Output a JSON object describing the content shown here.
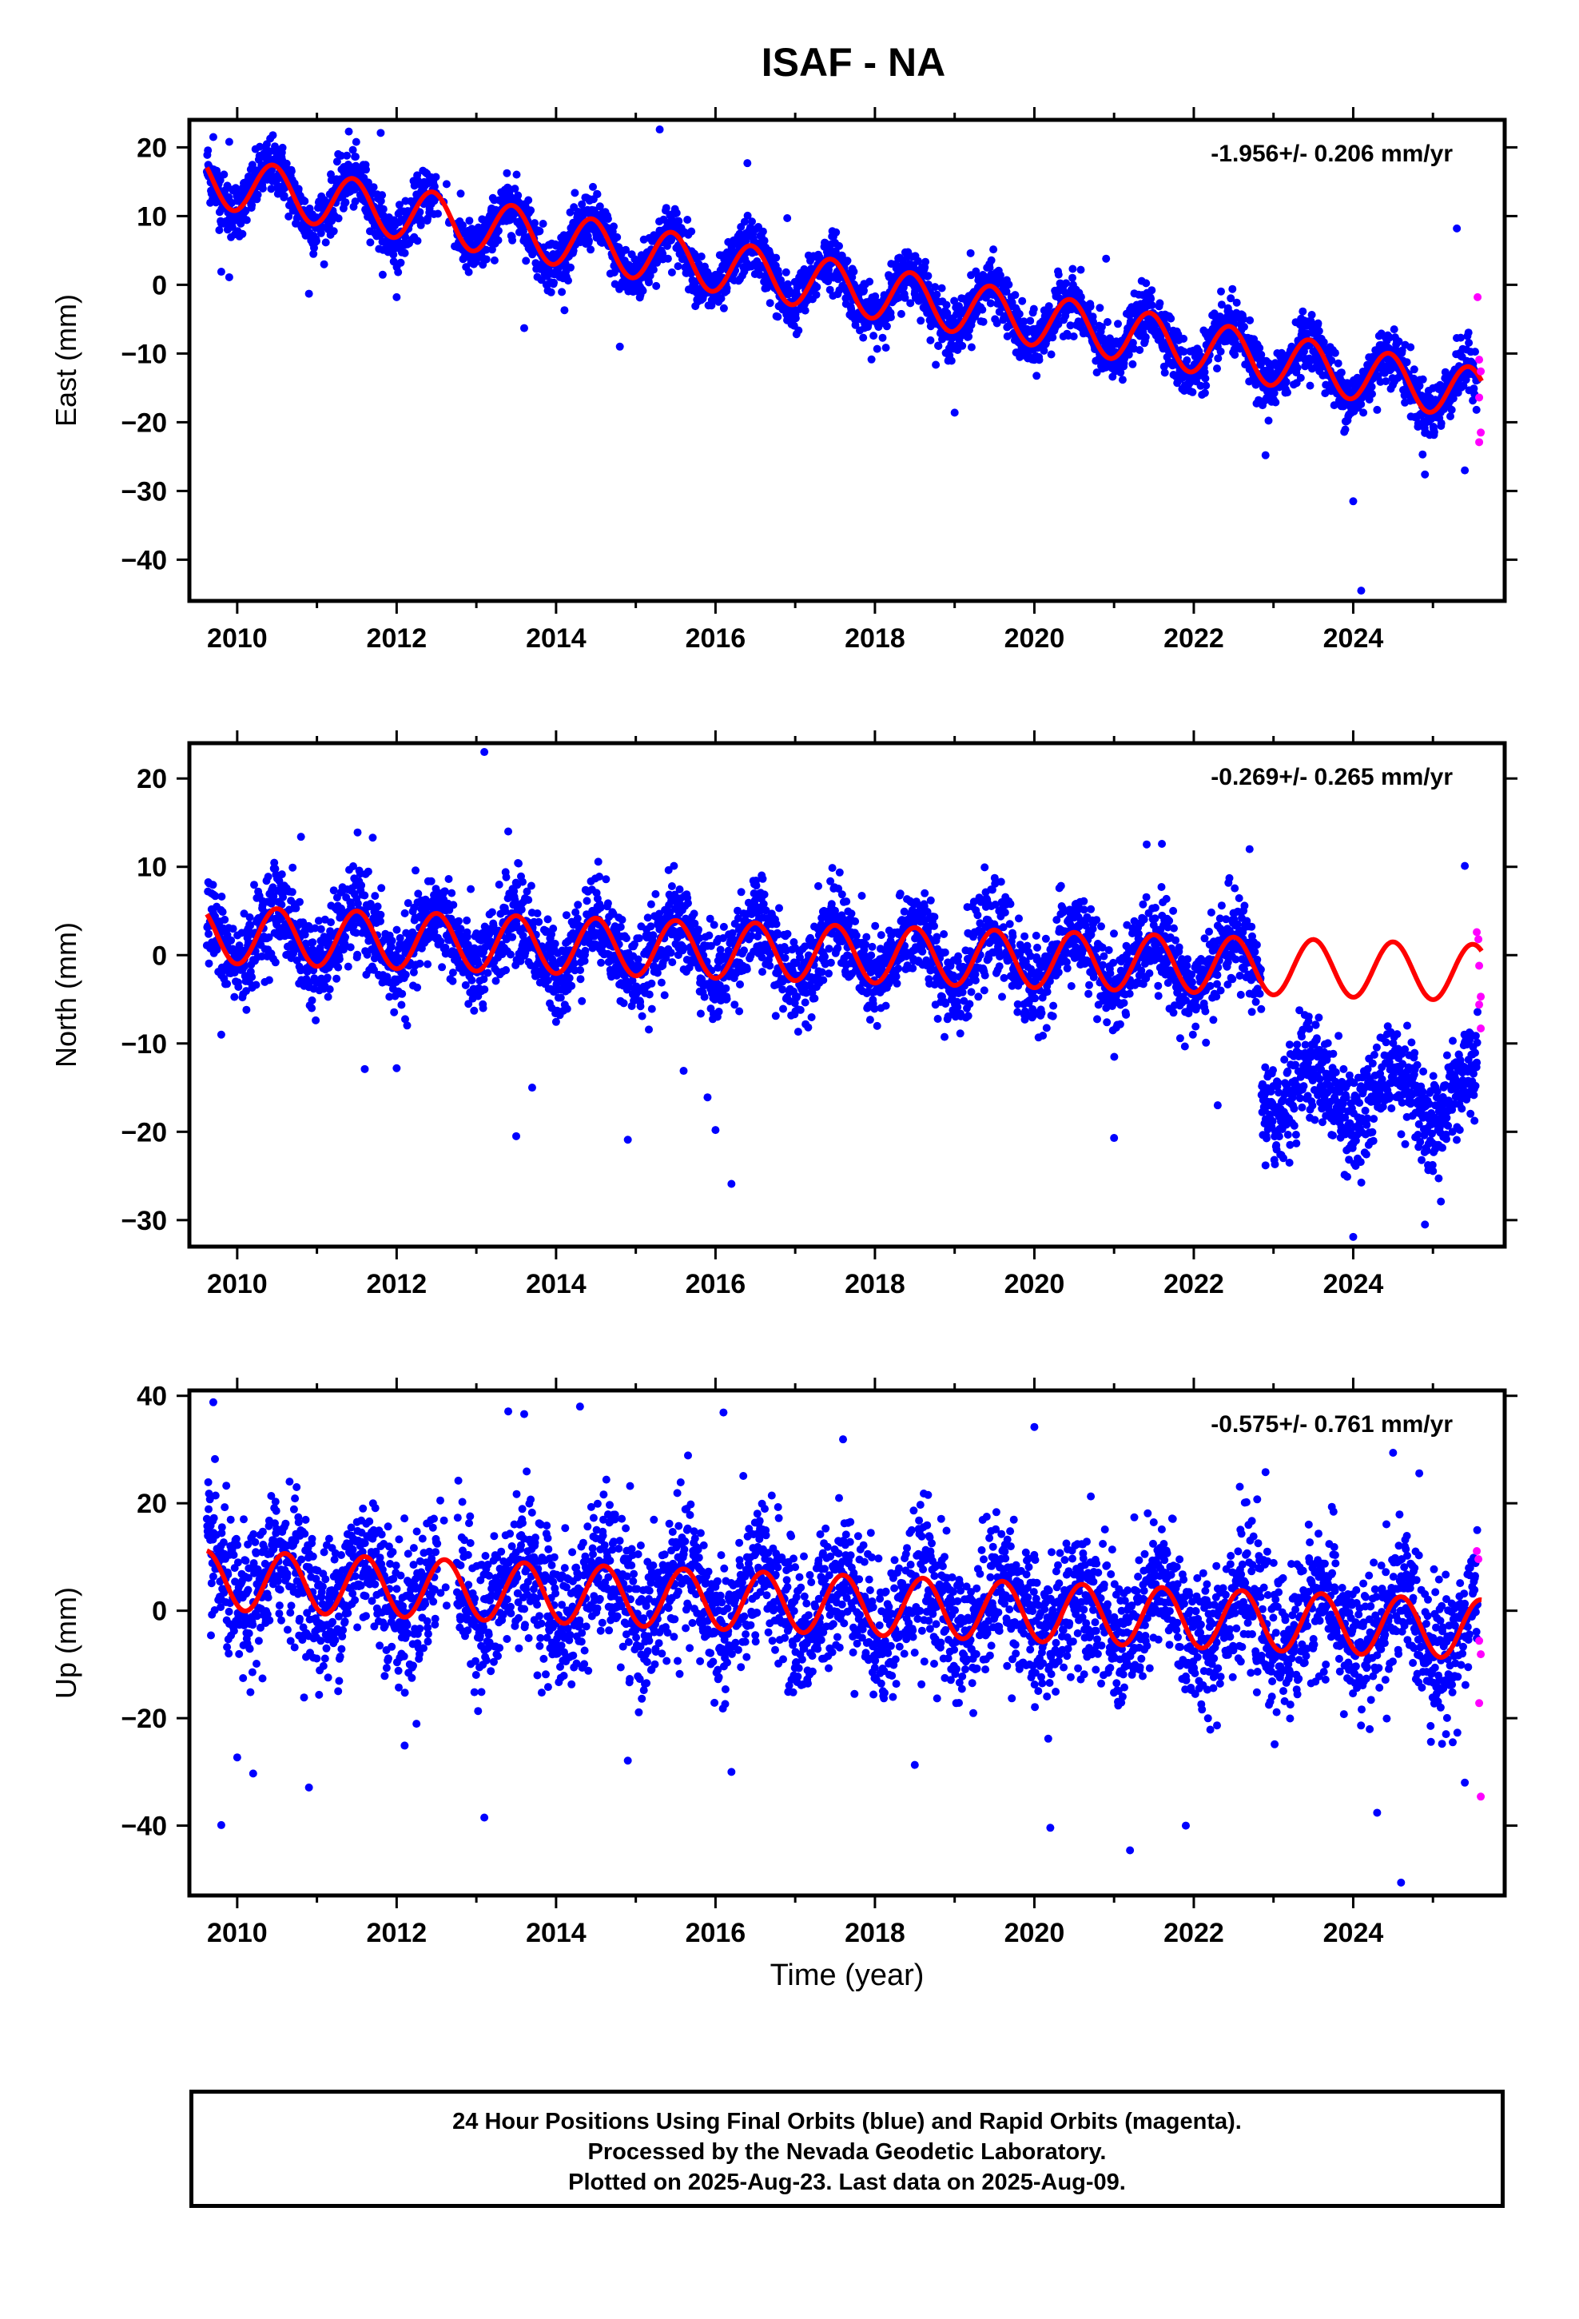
{
  "title": "ISAF - NA",
  "colors": {
    "final": "#0000ff",
    "rapid": "#ff00ff",
    "model": "#ff0000",
    "frame": "#000000"
  },
  "x_axis": {
    "xlim": [
      2009.4,
      2025.9
    ],
    "ticks": [
      2010,
      2012,
      2014,
      2016,
      2018,
      2020,
      2022,
      2024
    ],
    "minor_step": 1,
    "label": "Time (year)"
  },
  "chart_data": [
    {
      "type": "scatter",
      "component": "east",
      "ylabel": "East (mm)",
      "rate_label": "-1.956+/- 0.206 mm/yr",
      "ylim": [
        -46,
        24
      ],
      "yticks": [
        -40,
        -30,
        -20,
        -10,
        0,
        10,
        20
      ],
      "data_span": [
        2009.62,
        2025.61
      ],
      "model": {
        "offset": 14.5,
        "rate": -1.956,
        "amplitude": 3.8,
        "phase_peak": 0.45,
        "noise_sd": 2.0
      },
      "rapid_points": [
        {
          "x": 2025.56,
          "y": -1.8
        },
        {
          "x": 2025.58,
          "y": -10.9
        },
        {
          "x": 2025.6,
          "y": -12.6
        },
        {
          "x": 2025.58,
          "y": -16.4
        },
        {
          "x": 2025.6,
          "y": -21.5
        },
        {
          "x": 2025.58,
          "y": -22.9
        }
      ],
      "outliers": [
        {
          "x": 2009.7,
          "y": 21.5
        },
        {
          "x": 2009.9,
          "y": 20.8
        },
        {
          "x": 2009.8,
          "y": 1.9
        },
        {
          "x": 2009.9,
          "y": 1.1
        },
        {
          "x": 2010.9,
          "y": -1.3
        },
        {
          "x": 2011.4,
          "y": 22.3
        },
        {
          "x": 2011.8,
          "y": 22.1
        },
        {
          "x": 2012.0,
          "y": -1.8
        },
        {
          "x": 2013.6,
          "y": -6.3
        },
        {
          "x": 2014.8,
          "y": -9.0
        },
        {
          "x": 2015.3,
          "y": 22.6
        },
        {
          "x": 2016.4,
          "y": 17.7
        },
        {
          "x": 2016.9,
          "y": 9.7
        },
        {
          "x": 2019.0,
          "y": -18.6
        },
        {
          "x": 2019.2,
          "y": 4.6
        },
        {
          "x": 2020.9,
          "y": 3.8
        },
        {
          "x": 2022.9,
          "y": -24.8
        },
        {
          "x": 2024.0,
          "y": -31.5
        },
        {
          "x": 2024.1,
          "y": -44.5
        },
        {
          "x": 2024.3,
          "y": -18.2
        },
        {
          "x": 2024.9,
          "y": -27.6
        },
        {
          "x": 2025.3,
          "y": 8.2
        },
        {
          "x": 2025.4,
          "y": -27.0
        }
      ]
    },
    {
      "type": "scatter",
      "component": "north",
      "ylabel": "North (mm)",
      "rate_label": "-0.269+/- 0.265 mm/yr",
      "ylim": [
        -33,
        24
      ],
      "yticks": [
        -30,
        -20,
        -10,
        0,
        10,
        20
      ],
      "data_span": [
        2009.62,
        2025.61
      ],
      "offset_step": {
        "x": 2022.85,
        "dy": -14
      },
      "model": {
        "offset": 2.2,
        "rate": -0.269,
        "amplitude": 3.2,
        "phase_peak": 0.5,
        "noise_sd": 2.5
      },
      "rapid_points": [
        {
          "x": 2025.55,
          "y": 2.6
        },
        {
          "x": 2025.57,
          "y": 1.8
        },
        {
          "x": 2025.58,
          "y": -1.2
        },
        {
          "x": 2025.6,
          "y": -4.7
        },
        {
          "x": 2025.58,
          "y": -5.6
        },
        {
          "x": 2025.6,
          "y": -8.3
        }
      ],
      "outliers": [
        {
          "x": 2009.8,
          "y": -9.0
        },
        {
          "x": 2010.8,
          "y": 13.4
        },
        {
          "x": 2011.7,
          "y": 13.3
        },
        {
          "x": 2011.6,
          "y": -12.9
        },
        {
          "x": 2012.0,
          "y": -12.8
        },
        {
          "x": 2013.1,
          "y": 23.0
        },
        {
          "x": 2013.4,
          "y": 14.0
        },
        {
          "x": 2013.5,
          "y": -20.5
        },
        {
          "x": 2013.7,
          "y": -15.0
        },
        {
          "x": 2014.9,
          "y": -20.9
        },
        {
          "x": 2015.6,
          "y": -13.1
        },
        {
          "x": 2015.9,
          "y": -16.1
        },
        {
          "x": 2016.0,
          "y": -19.8
        },
        {
          "x": 2016.2,
          "y": -25.9
        },
        {
          "x": 2021.0,
          "y": -20.7
        },
        {
          "x": 2022.3,
          "y": -17.0
        },
        {
          "x": 2022.9,
          "y": -23.8
        },
        {
          "x": 2023.2,
          "y": -23.5
        },
        {
          "x": 2024.0,
          "y": -31.9
        },
        {
          "x": 2024.9,
          "y": -30.5
        },
        {
          "x": 2025.1,
          "y": -27.9
        },
        {
          "x": 2025.4,
          "y": 10.1
        },
        {
          "x": 2022.7,
          "y": 12.0
        },
        {
          "x": 2021.6,
          "y": 12.6
        }
      ]
    },
    {
      "type": "scatter",
      "component": "up",
      "ylabel": "Up (mm)",
      "rate_label": "-0.575+/- 0.761 mm/yr",
      "ylim": [
        -53,
        41
      ],
      "yticks": [
        -40,
        -20,
        0,
        20,
        40
      ],
      "data_span": [
        2009.62,
        2025.61
      ],
      "model": {
        "offset": 5.5,
        "rate": -0.575,
        "amplitude": 5.5,
        "phase_peak": 0.6,
        "noise_sd": 6.5
      },
      "rapid_points": [
        {
          "x": 2025.55,
          "y": 11.1
        },
        {
          "x": 2025.57,
          "y": 9.6
        },
        {
          "x": 2025.58,
          "y": -5.6
        },
        {
          "x": 2025.6,
          "y": -8.1
        },
        {
          "x": 2025.58,
          "y": -17.2
        },
        {
          "x": 2025.6,
          "y": -34.6
        }
      ],
      "outliers": [
        {
          "x": 2009.7,
          "y": 38.8
        },
        {
          "x": 2009.8,
          "y": -39.9
        },
        {
          "x": 2010.0,
          "y": -27.3
        },
        {
          "x": 2010.2,
          "y": -30.3
        },
        {
          "x": 2010.9,
          "y": -32.9
        },
        {
          "x": 2012.1,
          "y": -25.1
        },
        {
          "x": 2013.1,
          "y": -38.5
        },
        {
          "x": 2013.4,
          "y": 37.1
        },
        {
          "x": 2013.6,
          "y": 36.6
        },
        {
          "x": 2014.3,
          "y": 38.0
        },
        {
          "x": 2014.9,
          "y": -27.9
        },
        {
          "x": 2016.1,
          "y": 36.9
        },
        {
          "x": 2016.2,
          "y": -30.0
        },
        {
          "x": 2017.6,
          "y": 31.9
        },
        {
          "x": 2018.5,
          "y": -28.7
        },
        {
          "x": 2020.2,
          "y": -40.4
        },
        {
          "x": 2020.0,
          "y": 34.2
        },
        {
          "x": 2021.2,
          "y": -44.6
        },
        {
          "x": 2021.9,
          "y": -40.0
        },
        {
          "x": 2022.9,
          "y": 25.8
        },
        {
          "x": 2024.5,
          "y": 29.4
        },
        {
          "x": 2024.6,
          "y": -50.6
        },
        {
          "x": 2024.3,
          "y": -37.6
        },
        {
          "x": 2025.4,
          "y": -32.0
        }
      ]
    }
  ],
  "footer": {
    "line1": "24 Hour Positions Using Final Orbits (blue) and Rapid Orbits (magenta).",
    "line2": "Processed by the Nevada Geodetic Laboratory.",
    "line3": "Plotted on 2025-Aug-23. Last data on 2025-Aug-09."
  }
}
